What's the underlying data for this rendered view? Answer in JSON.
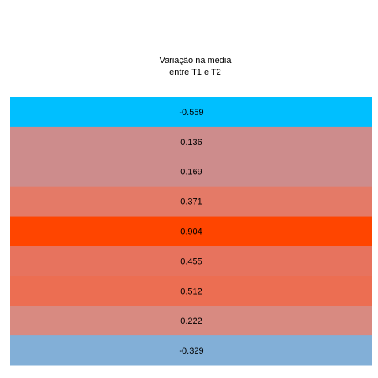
{
  "chart_data": {
    "type": "heatmap",
    "title_lines": [
      "Variação na média",
      "entre T1 e T2"
    ],
    "values": [
      -0.559,
      0.136,
      0.169,
      0.371,
      0.904,
      0.455,
      0.512,
      0.222,
      -0.329
    ],
    "labels": [
      "-0.559",
      "0.136",
      "0.169",
      "0.371",
      "0.904",
      "0.455",
      "0.512",
      "0.222",
      "-0.329"
    ],
    "colors": [
      "#00BFFF",
      "#CD8C8C",
      "#CD8C8C",
      "#E47A67",
      "#FF4500",
      "#E7735E",
      "#EC6E52",
      "#D88A81",
      "#82AFD7"
    ],
    "grid": false,
    "legend": "none"
  }
}
